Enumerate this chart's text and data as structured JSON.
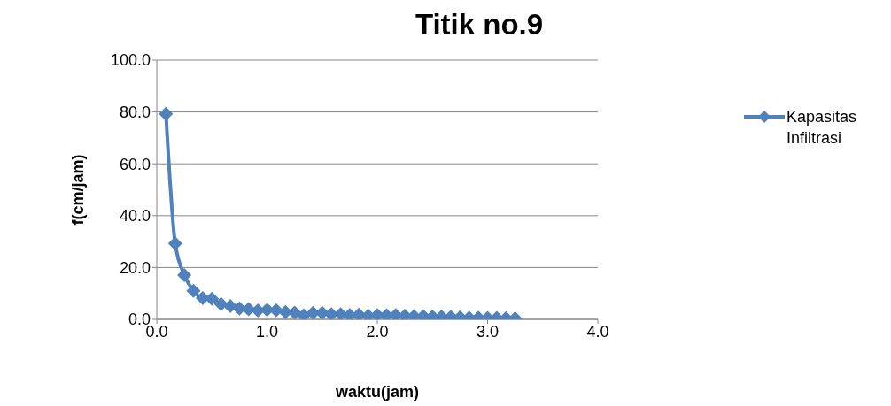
{
  "chart_data": {
    "type": "line",
    "title": "Titik no.9",
    "xlabel": "waktu(jam)",
    "ylabel": "f(cm/jam)",
    "x": [
      0.083,
      0.167,
      0.25,
      0.333,
      0.417,
      0.5,
      0.583,
      0.667,
      0.75,
      0.833,
      0.917,
      1.0,
      1.083,
      1.167,
      1.25,
      1.333,
      1.417,
      1.5,
      1.583,
      1.667,
      1.75,
      1.833,
      1.917,
      2.0,
      2.083,
      2.167,
      2.25,
      2.333,
      2.417,
      2.5,
      2.583,
      2.667,
      2.75,
      2.833,
      2.917,
      3.0,
      3.083,
      3.167,
      3.25
    ],
    "series": [
      {
        "name": "Kapasitas Infiltrasi",
        "color": "#4f81bd",
        "values": [
          79.3,
          29.3,
          17.1,
          11.0,
          8.2,
          7.9,
          5.9,
          5.1,
          4.2,
          3.9,
          3.4,
          3.7,
          3.5,
          2.8,
          2.6,
          1.5,
          2.5,
          2.5,
          2.0,
          2.0,
          1.6,
          1.8,
          1.4,
          1.6,
          1.5,
          1.6,
          1.4,
          1.2,
          1.2,
          1.0,
          1.0,
          0.9,
          0.8,
          0.6,
          0.6,
          0.5,
          0.5,
          0.4,
          0.3
        ]
      }
    ],
    "xlim": [
      0,
      4
    ],
    "xticks": [
      {
        "value": 0,
        "label": "0.0"
      },
      {
        "value": 1,
        "label": "1.0"
      },
      {
        "value": 2,
        "label": "2.0"
      },
      {
        "value": 3,
        "label": "3.0"
      },
      {
        "value": 4,
        "label": "4.0"
      }
    ],
    "ylim": [
      0,
      100
    ],
    "yticks": [
      {
        "value": 0,
        "label": "0.0"
      },
      {
        "value": 20,
        "label": "20.0"
      },
      {
        "value": 40,
        "label": "40.0"
      },
      {
        "value": 60,
        "label": "60.0"
      },
      {
        "value": 80,
        "label": "80.0"
      },
      {
        "value": 100,
        "label": "100.0"
      }
    ],
    "grid": "y",
    "legend": "right",
    "marker": "diamond",
    "line_style": "solid"
  }
}
